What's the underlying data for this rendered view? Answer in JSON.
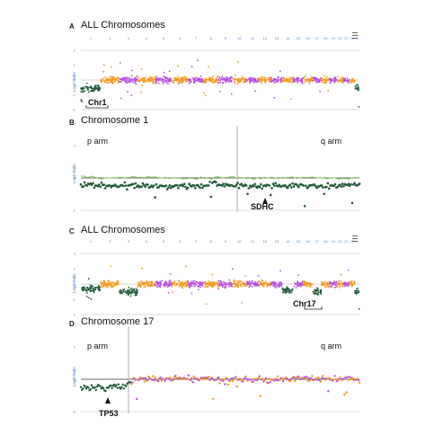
{
  "colors": {
    "purple": "#b84fe0",
    "orange": "#f29a1e",
    "dark_green": "#235a3c",
    "light_green": "#86c95a",
    "chrom_label": "#4e8ed0",
    "grid": "#bbbbbb"
  },
  "icons": [
    "menu-icon",
    "arrow-head-icon",
    "bracket-icon"
  ],
  "panels": [
    {
      "letter": "A",
      "title": "ALL Chromosomes",
      "ylabel": "Log2 Ratio",
      "annotation": "Chr1",
      "chrom_labels": [
        "1",
        "2",
        "3",
        "4",
        "5",
        "6",
        "7",
        "8",
        "9",
        "10",
        "11",
        "12",
        "13",
        "14",
        "15",
        "16",
        "17",
        "18",
        "19",
        "20",
        "21",
        "22",
        "X"
      ]
    },
    {
      "letter": "B",
      "title": "Chromosome 1",
      "ylabel": "Log2 Ratio",
      "p_arm": "p arm",
      "q_arm": "q arm",
      "annotation": "SDHC"
    },
    {
      "letter": "C",
      "title": "ALL Chromosomes",
      "ylabel": "Log2 Ratio",
      "annotation": "Chr17",
      "chrom_labels": [
        "1",
        "2",
        "3",
        "4",
        "5",
        "6",
        "7",
        "8",
        "9",
        "10",
        "11",
        "12",
        "13",
        "14",
        "15",
        "16",
        "17",
        "18",
        "19",
        "20",
        "21",
        "22",
        "X"
      ]
    },
    {
      "letter": "D",
      "title": "Chromosome 17",
      "ylabel": "Log2 Ratio",
      "p_arm": "p arm",
      "q_arm": "q arm",
      "annotation": "TP53"
    }
  ],
  "chart_data": [
    {
      "type": "scatter",
      "title": "ALL Chromosomes",
      "ylabel": "Log2 Ratio",
      "ylim": [
        -2,
        2
      ],
      "categories": [
        "1",
        "2",
        "3",
        "4",
        "5",
        "6",
        "7",
        "8",
        "9",
        "10",
        "11",
        "12",
        "13",
        "14",
        "15",
        "16",
        "17",
        "18",
        "19",
        "20",
        "21",
        "22",
        "X"
      ],
      "series": [
        {
          "values": [
            -0.6,
            0,
            0,
            0,
            0,
            0,
            0,
            0,
            0,
            0,
            0,
            0,
            0,
            0,
            0,
            0,
            0,
            0,
            0,
            0,
            0,
            0,
            -0.5
          ]
        }
      ],
      "annotations": [
        "Chr1"
      ]
    },
    {
      "type": "scatter",
      "title": "Chromosome 1",
      "ylabel": "Log2 Ratio",
      "ylim": [
        -2,
        2
      ],
      "x": [
        0.0,
        0.1,
        0.2,
        0.3,
        0.4,
        0.5,
        0.6,
        0.7,
        0.8,
        0.9,
        1.0
      ],
      "series": [
        {
          "values": [
            -0.4,
            -0.5,
            -0.45,
            -0.5,
            -0.5,
            -0.4,
            -0.5,
            -0.45,
            -0.5,
            -0.5,
            -0.45
          ]
        },
        {
          "values": [
            0.05,
            0.0,
            0.05,
            0.0,
            -0.05,
            0.05,
            0.0,
            0.0,
            0.05,
            -0.05,
            0.0
          ]
        }
      ],
      "annotations": [
        "p arm",
        "q arm",
        "SDHC"
      ]
    },
    {
      "type": "scatter",
      "title": "ALL Chromosomes",
      "ylabel": "Log2 Ratio",
      "ylim": [
        -2,
        2
      ],
      "categories": [
        "1",
        "2",
        "3",
        "4",
        "5",
        "6",
        "7",
        "8",
        "9",
        "10",
        "11",
        "12",
        "13",
        "14",
        "15",
        "16",
        "17",
        "18",
        "19",
        "20",
        "21",
        "22",
        "X"
      ],
      "series": [
        {
          "values": [
            -0.3,
            0,
            -0.5,
            0,
            0,
            0,
            0,
            0,
            0,
            0,
            0,
            0,
            0,
            -0.4,
            0,
            0,
            -0.5,
            0,
            0,
            0,
            0,
            0,
            -0.5
          ]
        }
      ],
      "annotations": [
        "Chr17"
      ]
    },
    {
      "type": "scatter",
      "title": "Chromosome 17",
      "ylabel": "Log2 Ratio",
      "ylim": [
        -2,
        2
      ],
      "x": [
        0.0,
        0.05,
        0.1,
        0.15,
        0.2,
        0.3,
        0.4,
        0.5,
        0.6,
        0.7,
        0.8,
        0.9,
        1.0
      ],
      "series": [
        {
          "values": [
            -0.5,
            -0.55,
            -0.5,
            -0.45,
            0.0,
            0.0,
            0.05,
            0.0,
            -0.05,
            0.0,
            0.05,
            0.0,
            0.0
          ]
        }
      ],
      "annotations": [
        "p arm",
        "q arm",
        "TP53"
      ]
    }
  ]
}
